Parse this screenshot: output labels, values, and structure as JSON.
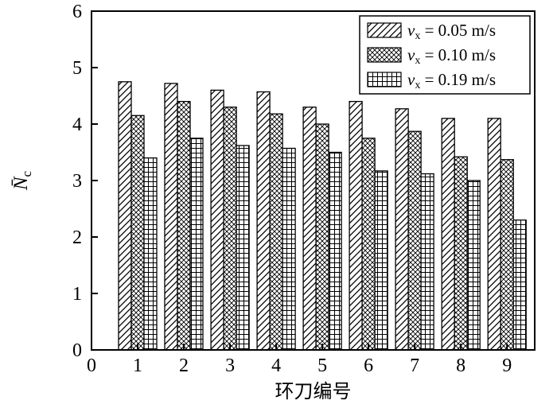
{
  "figure": {
    "background": "#ffffff",
    "ink": "#000000"
  },
  "chart_data": {
    "type": "bar",
    "title": "",
    "categories": [
      "1",
      "2",
      "3",
      "4",
      "5",
      "6",
      "7",
      "8",
      "9"
    ],
    "series": [
      {
        "name": "vx = 0.05 m/s",
        "label_parts": {
          "var": "v",
          "sub": "x",
          "rest": " = 0.05 m/s"
        },
        "pattern": "diagonal-hatch",
        "values": [
          4.75,
          4.72,
          4.6,
          4.57,
          4.3,
          4.4,
          4.27,
          4.1,
          4.1
        ]
      },
      {
        "name": "vx = 0.10 m/s",
        "label_parts": {
          "var": "v",
          "sub": "x",
          "rest": " = 0.10 m/s"
        },
        "pattern": "cross-hatch",
        "values": [
          4.15,
          4.4,
          4.3,
          4.18,
          4.0,
          3.75,
          3.87,
          3.42,
          3.37
        ]
      },
      {
        "name": "vx = 0.19 m/s",
        "label_parts": {
          "var": "v",
          "sub": "x",
          "rest": " = 0.19 m/s"
        },
        "pattern": "grid-hatch",
        "values": [
          3.4,
          3.75,
          3.62,
          3.57,
          3.5,
          3.17,
          3.12,
          3.0,
          2.3
        ]
      }
    ],
    "xlabel": "环刀编号",
    "ylabel": {
      "base": "N̄",
      "sub": "c"
    },
    "xticks": [
      "0",
      "1",
      "2",
      "3",
      "4",
      "5",
      "6",
      "7",
      "8",
      "9"
    ],
    "yticks": [
      "0",
      "1",
      "2",
      "3",
      "4",
      "5",
      "6"
    ],
    "ylim": [
      0,
      6
    ],
    "xlim": [
      0,
      9.6
    ],
    "grid": false,
    "legend_position": "top-right",
    "bar_fill": "#ffffff",
    "bar_stroke": "#000000"
  }
}
